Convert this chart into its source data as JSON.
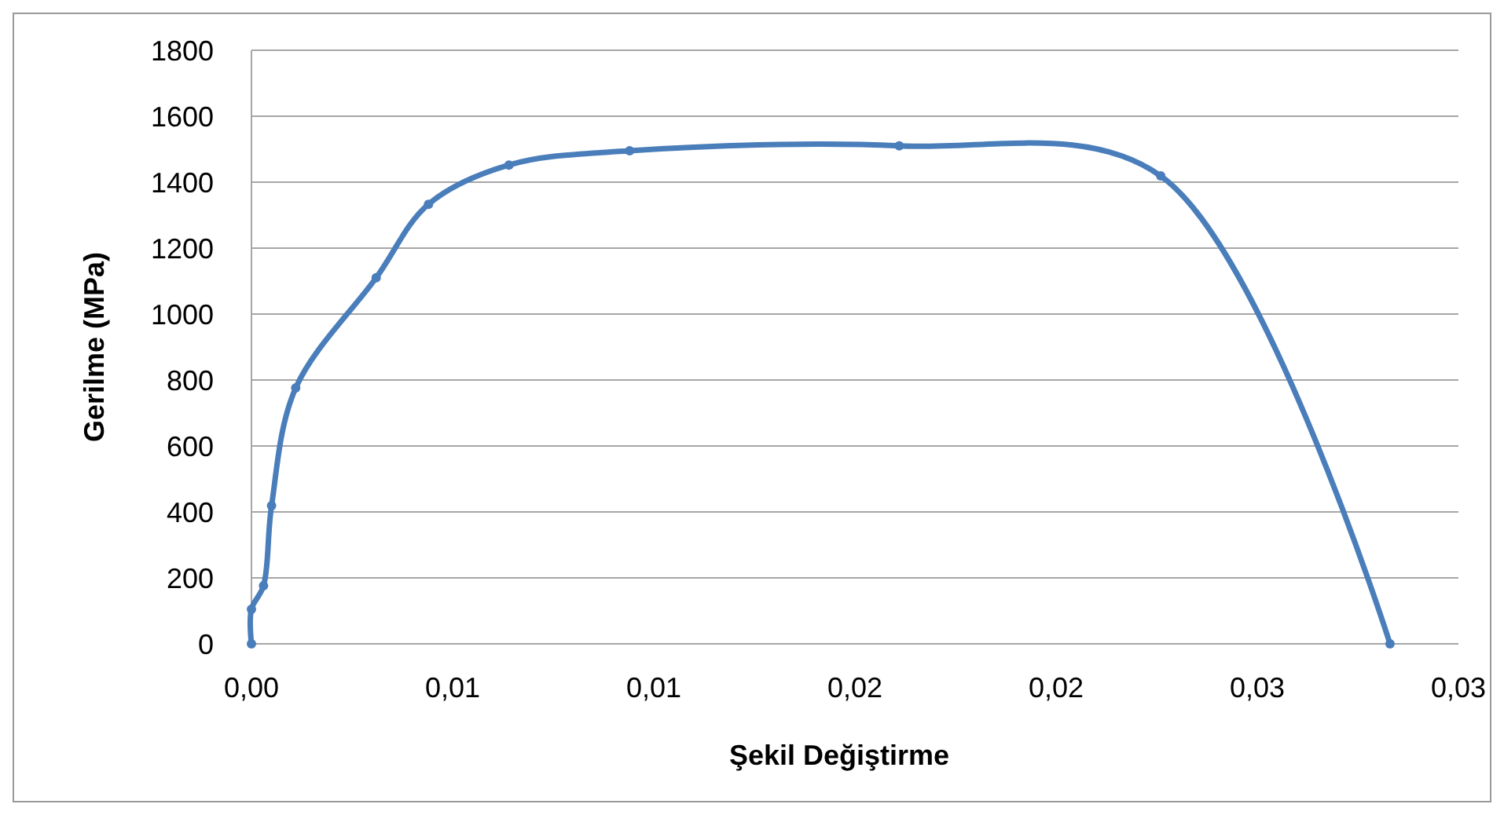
{
  "chart_data": {
    "type": "line",
    "xlabel": "Şekil Değiştirme",
    "ylabel": "Gerilme (MPa)",
    "x": [
      0,
      0,
      0.0003,
      0.0005,
      0.0011,
      0.0031,
      0.0044,
      0.0064,
      0.0094,
      0.0161,
      0.0226,
      0.0283
    ],
    "series": [
      {
        "color": "#4a7ebb",
        "values": [
          0,
          105,
          176,
          419,
          776,
          1110,
          1333,
          1452,
          1495,
          1510,
          1419,
          0
        ]
      }
    ],
    "xlim": [
      0,
      0.03
    ],
    "xticks": [
      {
        "value": 0,
        "label": "0,00"
      },
      {
        "value": 0.005,
        "label": "0,01"
      },
      {
        "value": 0.01,
        "label": "0,01"
      },
      {
        "value": 0.015,
        "label": "0,02"
      },
      {
        "value": 0.02,
        "label": "0,02"
      },
      {
        "value": 0.025,
        "label": "0,03"
      },
      {
        "value": 0.03,
        "label": "0,03"
      }
    ],
    "ylim": [
      0,
      1800
    ],
    "yticks": [
      0,
      200,
      400,
      600,
      800,
      1000,
      1200,
      1400,
      1600,
      1800
    ],
    "grid": "y",
    "marker": "circle",
    "line_style": "solid"
  }
}
